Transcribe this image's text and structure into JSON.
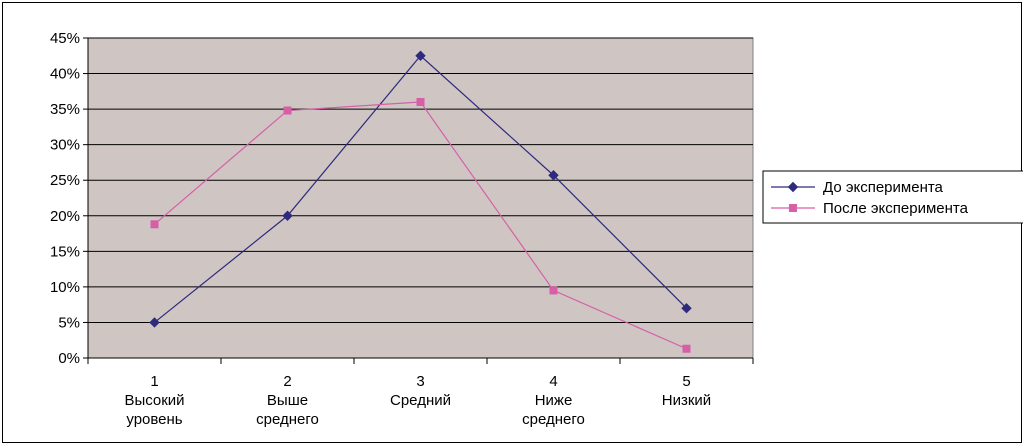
{
  "chart_data": {
    "type": "line",
    "categories": [
      [
        "1",
        "Высокий",
        "уровень"
      ],
      [
        "2",
        "Выше",
        "среднего"
      ],
      [
        "3",
        "Средний"
      ],
      [
        "4",
        "Ниже",
        "среднего"
      ],
      [
        "5",
        "Низкий"
      ]
    ],
    "series": [
      {
        "name": "До эксперимента",
        "values": [
          5,
          20,
          42.5,
          25.7,
          7
        ],
        "color": "#2E2A7E",
        "marker": "diamond"
      },
      {
        "name": "После эксперимента",
        "values": [
          18.8,
          34.8,
          36,
          9.5,
          1.3
        ],
        "color": "#D65FA8",
        "marker": "square"
      }
    ],
    "ylim": [
      0,
      45
    ],
    "yticks": [
      "0%",
      "5%",
      "10%",
      "15%",
      "20%",
      "25%",
      "30%",
      "35%",
      "40%",
      "45%"
    ],
    "ytick_values": [
      0,
      5,
      10,
      15,
      20,
      25,
      30,
      35,
      40,
      45
    ],
    "plot_background": "#CFC6C4",
    "grid": true,
    "legend_position": "right"
  }
}
